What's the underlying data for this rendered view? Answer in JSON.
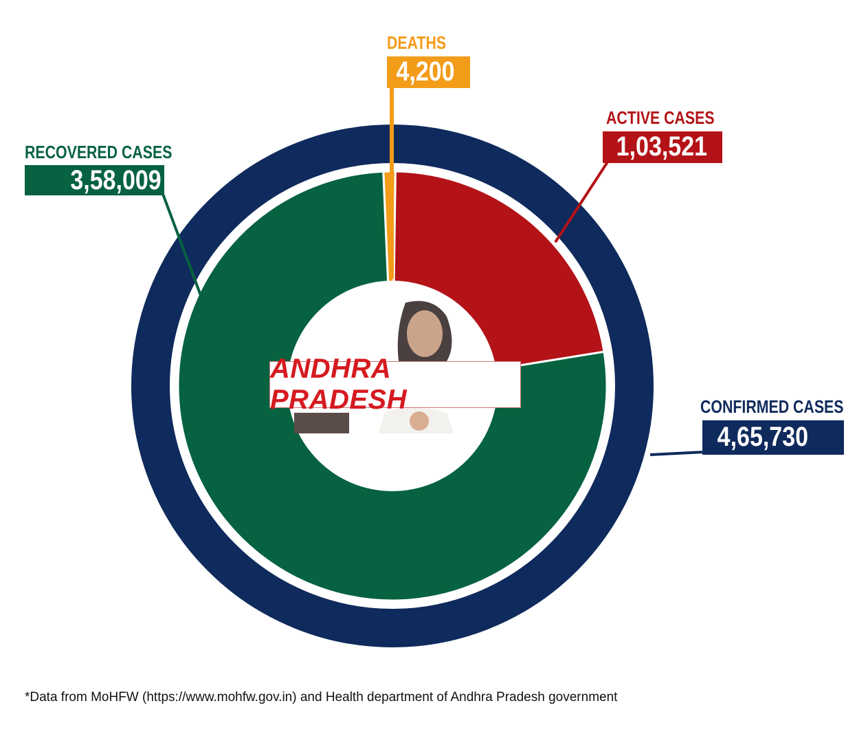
{
  "chart_data": {
    "type": "pie",
    "subtype": "donut",
    "title": "ANDHRA PRADESH",
    "outer_ring": {
      "label": "CONFIRMED CASES",
      "value": 465730,
      "display": "4,65,730",
      "color": "#0f2a5c"
    },
    "slices": [
      {
        "label": "DEATHS",
        "value": 4200,
        "display": "4,200",
        "color": "#f39c1a"
      },
      {
        "label": "ACTIVE CASES",
        "value": 103521,
        "display": "1,03,521",
        "color": "#b31217"
      },
      {
        "label": "RECOVERED CASES",
        "value": 358009,
        "display": "3,58,009",
        "color": "#066240"
      }
    ],
    "total": 465730,
    "footnote": "*Data from MoHFW (https://www.mohfw.gov.in) and Health department of Andhra Pradesh government"
  },
  "labels": {
    "deaths": {
      "title": "DEATHS",
      "value": "4,200",
      "color": "#f39c1a"
    },
    "active": {
      "title": "ACTIVE CASES",
      "value": "1,03,521",
      "color": "#b31217"
    },
    "recovered": {
      "title": "RECOVERED CASES",
      "value": "3,58,009",
      "color": "#066240"
    },
    "confirmed": {
      "title": "CONFIRMED CASES",
      "value": "4,65,730",
      "color": "#0f2a5c"
    }
  },
  "center": {
    "title": "ANDHRA PRADESH"
  },
  "footnote": "*Data from MoHFW (https://www.mohfw.gov.in) and Health department of Andhra Pradesh government"
}
